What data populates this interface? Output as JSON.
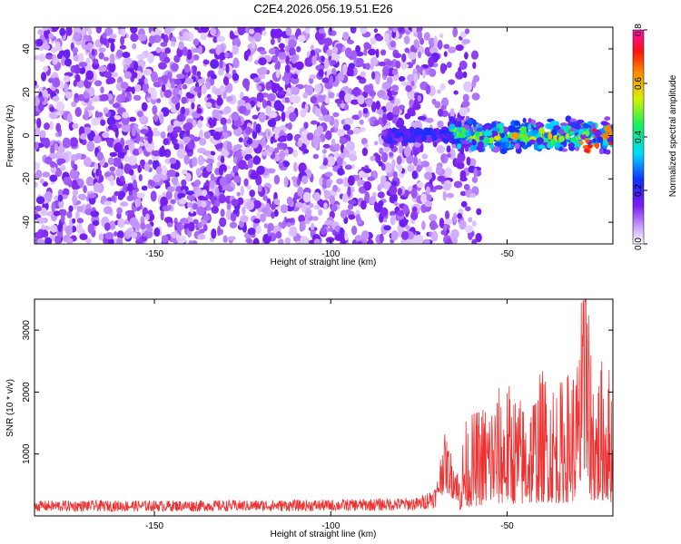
{
  "title": "C2E4.2026.056.19.51.E26",
  "chart_data": [
    {
      "type": "heatmap",
      "name": "spectrogram",
      "xlabel": "Height of straight line (km)",
      "ylabel": "Frequency (Hz)",
      "xlim": [
        -184,
        -20
      ],
      "ylim": [
        -50,
        50
      ],
      "xticks": [
        -150,
        -100,
        -50
      ],
      "yticks": [
        -40,
        -20,
        0,
        20,
        40
      ],
      "colorbar": {
        "label": "Normalized spectral amplitude",
        "range": [
          0.0,
          0.8
        ],
        "ticks": [
          0.0,
          0.2,
          0.4,
          0.6,
          0.8
        ],
        "colormap": "rainbow (white → violet → blue → cyan → green → yellow → red → magenta)"
      },
      "description_regions": [
        {
          "x_range": [
            -184,
            -66
          ],
          "freq_range": [
            -50,
            50
          ],
          "amplitude_level": 0.05
        },
        {
          "x_range": [
            -66,
            -20
          ],
          "freq_range": [
            -8,
            8
          ],
          "amplitude_level": 0.45
        }
      ]
    },
    {
      "type": "line",
      "name": "snr",
      "xlabel": "Height of straight line (km)",
      "ylabel": "SNR (10 * v/v)",
      "xlim": [
        -184,
        -20
      ],
      "ylim": [
        0,
        3500
      ],
      "xticks": [
        -150,
        -100,
        -50
      ],
      "yticks": [
        1000,
        2000,
        3000
      ],
      "color": "#ef3030",
      "series": [
        {
          "name": "SNR",
          "x": [
            -184,
            -150,
            -100,
            -75,
            -70,
            -68,
            -64,
            -62,
            -55,
            -50,
            -45,
            -40,
            -35,
            -30,
            -28,
            -25,
            -22,
            -20
          ],
          "values": [
            200,
            200,
            210,
            240,
            400,
            1100,
            600,
            1400,
            1800,
            2000,
            1700,
            2200,
            2000,
            2400,
            3450,
            2100,
            2500,
            2000
          ]
        }
      ]
    }
  ],
  "colors": {
    "line": "#ef3030",
    "axis": "#000000",
    "background": "#ffffff"
  }
}
